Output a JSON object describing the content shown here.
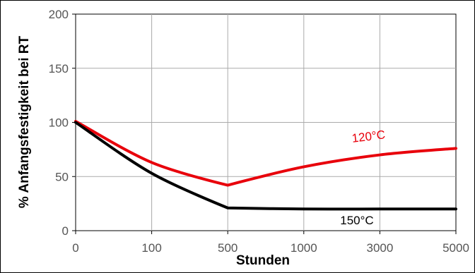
{
  "chart_data": {
    "type": "line",
    "xlabel": "Stunden",
    "ylabel": "% Anfangsfestigkeit bei RT",
    "x_tick_labels": [
      "0",
      "100",
      "500",
      "1000",
      "3000",
      "5000"
    ],
    "y_ticks": [
      0,
      50,
      100,
      150,
      200
    ],
    "ylim": [
      0,
      200
    ],
    "grid": true,
    "series": [
      {
        "name": "120°C",
        "color": "#e8000b",
        "x": [
          "0",
          "100",
          "500",
          "1000",
          "3000",
          "5000"
        ],
        "values": [
          101,
          63,
          42,
          59,
          70,
          76
        ]
      },
      {
        "name": "150°C",
        "color": "#000000",
        "x": [
          "0",
          "100",
          "500",
          "1000",
          "3000",
          "5000"
        ],
        "values": [
          100,
          53,
          21,
          20,
          20,
          20
        ]
      }
    ]
  }
}
